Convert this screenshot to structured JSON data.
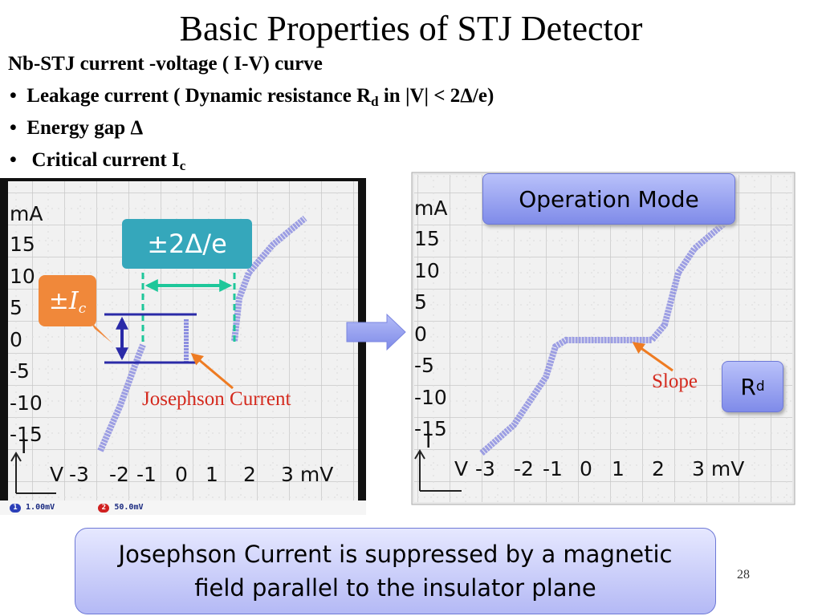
{
  "header": {
    "title": "Basic Properties of STJ Detector"
  },
  "intro": "Nb-STJ current -voltage ( I-V) curve",
  "bullets": [
    {
      "text": "Leakage current   ( Dynamic resistance  R",
      "sub": "d",
      "tail": "  in |V| < 2Δ/e)"
    },
    {
      "text": "Energy gap   Δ"
    },
    {
      "text": "Critical current I",
      "sub": "c"
    }
  ],
  "left_scope": {
    "unit": "mA",
    "y_labels": [
      "15",
      "10",
      "5",
      "0",
      "-5",
      "-10",
      "-15"
    ],
    "y_axis": "I",
    "x_axis": "V",
    "x_labels": [
      "-3",
      "-2",
      "-1",
      "0",
      "1",
      "2",
      "3 mV"
    ],
    "status": [
      {
        "channel": "1",
        "value": "1.00mV"
      },
      {
        "channel": "2",
        "value": "50.0mV"
      }
    ]
  },
  "right_scope": {
    "unit": "mA",
    "y_labels": [
      "15",
      "10",
      "5",
      "0",
      "-5",
      "-10",
      "-15"
    ],
    "y_axis": "I",
    "x_axis": "V",
    "x_labels": [
      "-3",
      "-2",
      "-1",
      "0",
      "1",
      "2",
      "3 mV"
    ]
  },
  "annotations": {
    "gap": "±2Δ/e",
    "ic": {
      "text": "±",
      "symbol": "I",
      "sub": "c"
    },
    "josephson": "Josephson Current",
    "operation_mode": "Operation Mode",
    "slope": "Slope",
    "rd": {
      "text": "R",
      "sub": "d"
    }
  },
  "callout": [
    "Josephson Current is suppressed by a magnetic",
    "field parallel to the insulator plane"
  ],
  "page_number": "28"
}
